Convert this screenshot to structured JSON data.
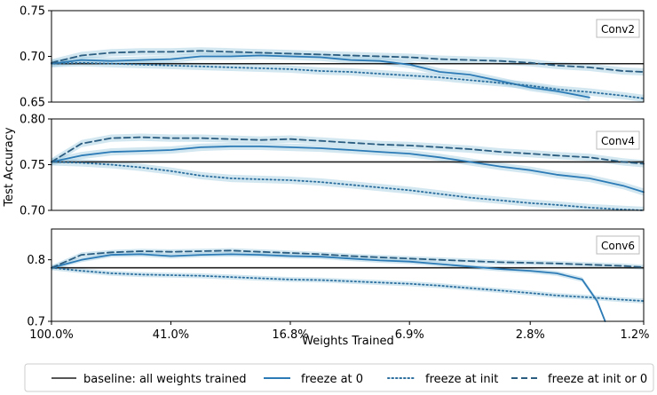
{
  "figure": {
    "ylabel": "Test Accuracy",
    "xlabel": "Weights Trained",
    "x_tick_labels": [
      "100.0%",
      "41.0%",
      "16.8%",
      "6.9%",
      "2.8%",
      "1.2%"
    ]
  },
  "legend": {
    "placement": "bottom",
    "items": [
      {
        "label": "baseline: all weights trained",
        "color": "#1f1f1f",
        "style": "solid"
      },
      {
        "label": "freeze at 0",
        "color": "#2c7bb6",
        "style": "solid"
      },
      {
        "label": "freeze at init",
        "color": "#2c6f9e",
        "style": "dotted"
      },
      {
        "label": "freeze at init or 0",
        "color": "#2b5d80",
        "style": "dashed"
      }
    ]
  },
  "colors": {
    "baseline": "#1f1f1f",
    "freeze_zero": "#2c7bb6",
    "freeze_init": "#2c6f9e",
    "freeze_init_or_zero": "#2b5d80",
    "band": "#9ecae1"
  },
  "chart_data": [
    {
      "type": "line",
      "title": "Conv2",
      "ylim": [
        0.65,
        0.75
      ],
      "y_ticks": [
        0.65,
        0.7,
        0.75
      ],
      "y_tick_labels": [
        "0.65",
        "0.70",
        "0.75"
      ],
      "xlim": [
        100.0,
        1.2
      ],
      "x_scale": "log",
      "grid": false,
      "baseline": 0.692,
      "series": [
        {
          "name": "freeze at 0",
          "style": "solid",
          "x": [
            100.0,
            80.0,
            64.0,
            51.2,
            41.0,
            32.8,
            26.2,
            21.0,
            16.8,
            13.4,
            10.7,
            8.6,
            6.9,
            5.5,
            4.4,
            3.5,
            2.8,
            2.3,
            1.8
          ],
          "y": [
            0.692,
            0.696,
            0.695,
            0.696,
            0.697,
            0.7,
            0.7,
            0.701,
            0.7,
            0.699,
            0.696,
            0.695,
            0.691,
            0.683,
            0.68,
            0.673,
            0.666,
            0.662,
            0.655
          ],
          "band": [
            0.004,
            0.004,
            0.004,
            0.004,
            0.004,
            0.004,
            0.004,
            0.004,
            0.004,
            0.004,
            0.004,
            0.004,
            0.004,
            0.004,
            0.004,
            0.004,
            0.004,
            0.004,
            0.004
          ]
        },
        {
          "name": "freeze at init",
          "style": "dotted",
          "x": [
            100.0,
            80.0,
            64.0,
            51.2,
            41.0,
            32.8,
            26.2,
            21.0,
            16.8,
            13.4,
            10.7,
            8.6,
            6.9,
            5.5,
            4.4,
            3.5,
            2.8,
            2.3,
            1.8,
            1.4,
            1.2
          ],
          "y": [
            0.692,
            0.693,
            0.692,
            0.691,
            0.69,
            0.689,
            0.688,
            0.687,
            0.686,
            0.684,
            0.683,
            0.681,
            0.679,
            0.677,
            0.674,
            0.671,
            0.668,
            0.664,
            0.661,
            0.657,
            0.654
          ],
          "band": [
            0.004,
            0.004,
            0.004,
            0.004,
            0.004,
            0.004,
            0.004,
            0.004,
            0.004,
            0.004,
            0.004,
            0.004,
            0.004,
            0.004,
            0.004,
            0.004,
            0.004,
            0.004,
            0.004,
            0.004,
            0.004
          ]
        },
        {
          "name": "freeze at init or 0",
          "style": "dashed",
          "x": [
            100.0,
            80.0,
            64.0,
            51.2,
            41.0,
            32.8,
            26.2,
            21.0,
            16.8,
            13.4,
            10.7,
            8.6,
            6.9,
            5.5,
            4.4,
            3.5,
            2.8,
            2.3,
            1.8,
            1.4,
            1.2
          ],
          "y": [
            0.693,
            0.701,
            0.704,
            0.705,
            0.705,
            0.706,
            0.705,
            0.704,
            0.703,
            0.702,
            0.701,
            0.7,
            0.699,
            0.697,
            0.696,
            0.695,
            0.693,
            0.69,
            0.688,
            0.684,
            0.683
          ],
          "band": [
            0.004,
            0.004,
            0.004,
            0.004,
            0.004,
            0.004,
            0.004,
            0.004,
            0.004,
            0.004,
            0.004,
            0.004,
            0.004,
            0.004,
            0.004,
            0.004,
            0.004,
            0.004,
            0.004,
            0.004,
            0.004
          ]
        }
      ]
    },
    {
      "type": "line",
      "title": "Conv4",
      "ylim": [
        0.7,
        0.8
      ],
      "y_ticks": [
        0.7,
        0.75,
        0.8
      ],
      "y_tick_labels": [
        "0.70",
        "0.75",
        "0.80"
      ],
      "xlim": [
        100.0,
        1.2
      ],
      "x_scale": "log",
      "grid": false,
      "baseline": 0.753,
      "series": [
        {
          "name": "freeze at 0",
          "style": "solid",
          "x": [
            100.0,
            80.0,
            64.0,
            51.2,
            41.0,
            32.8,
            26.2,
            21.0,
            16.8,
            13.4,
            10.7,
            8.6,
            6.9,
            5.5,
            4.4,
            3.5,
            2.8,
            2.3,
            1.8,
            1.4,
            1.2
          ],
          "y": [
            0.753,
            0.76,
            0.764,
            0.765,
            0.766,
            0.769,
            0.77,
            0.77,
            0.769,
            0.768,
            0.766,
            0.764,
            0.762,
            0.758,
            0.753,
            0.748,
            0.744,
            0.739,
            0.735,
            0.727,
            0.72
          ],
          "band": [
            0.004,
            0.004,
            0.004,
            0.004,
            0.004,
            0.004,
            0.004,
            0.004,
            0.004,
            0.004,
            0.004,
            0.004,
            0.004,
            0.004,
            0.004,
            0.004,
            0.004,
            0.004,
            0.004,
            0.004,
            0.004
          ]
        },
        {
          "name": "freeze at init",
          "style": "dotted",
          "x": [
            100.0,
            80.0,
            64.0,
            51.2,
            41.0,
            32.8,
            26.2,
            21.0,
            16.8,
            13.4,
            10.7,
            8.6,
            6.9,
            5.5,
            4.4,
            3.5,
            2.8,
            2.3,
            1.8,
            1.4,
            1.2
          ],
          "y": [
            0.753,
            0.752,
            0.75,
            0.747,
            0.743,
            0.738,
            0.735,
            0.734,
            0.733,
            0.731,
            0.728,
            0.725,
            0.722,
            0.718,
            0.714,
            0.711,
            0.708,
            0.706,
            0.703,
            0.701,
            0.7
          ],
          "band": [
            0.004,
            0.004,
            0.004,
            0.004,
            0.004,
            0.004,
            0.004,
            0.004,
            0.004,
            0.004,
            0.004,
            0.004,
            0.004,
            0.004,
            0.004,
            0.004,
            0.004,
            0.004,
            0.004,
            0.004,
            0.004
          ]
        },
        {
          "name": "freeze at init or 0",
          "style": "dashed",
          "x": [
            100.0,
            80.0,
            64.0,
            51.2,
            41.0,
            32.8,
            26.2,
            21.0,
            16.8,
            13.4,
            10.7,
            8.6,
            6.9,
            5.5,
            4.4,
            3.5,
            2.8,
            2.3,
            1.8,
            1.4,
            1.2
          ],
          "y": [
            0.753,
            0.773,
            0.779,
            0.78,
            0.779,
            0.779,
            0.778,
            0.777,
            0.778,
            0.776,
            0.774,
            0.772,
            0.771,
            0.769,
            0.767,
            0.764,
            0.762,
            0.76,
            0.758,
            0.753,
            0.751
          ],
          "band": [
            0.004,
            0.004,
            0.004,
            0.004,
            0.004,
            0.004,
            0.004,
            0.004,
            0.004,
            0.004,
            0.004,
            0.004,
            0.004,
            0.004,
            0.004,
            0.004,
            0.004,
            0.004,
            0.004,
            0.004,
            0.004
          ]
        }
      ]
    },
    {
      "type": "line",
      "title": "Conv6",
      "ylim": [
        0.7,
        0.85
      ],
      "y_ticks": [
        0.7,
        0.8
      ],
      "y_tick_labels": [
        "0.7",
        "0.8"
      ],
      "xlim": [
        100.0,
        1.2
      ],
      "x_scale": "log",
      "grid": false,
      "baseline": 0.787,
      "series": [
        {
          "name": "freeze at 0",
          "style": "solid",
          "x": [
            100.0,
            80.0,
            64.0,
            51.2,
            41.0,
            32.8,
            26.2,
            21.0,
            16.8,
            13.4,
            10.7,
            8.6,
            6.9,
            5.5,
            4.4,
            3.5,
            2.8,
            2.3,
            1.9,
            1.7,
            1.6
          ],
          "y": [
            0.787,
            0.8,
            0.808,
            0.809,
            0.806,
            0.808,
            0.809,
            0.808,
            0.806,
            0.805,
            0.802,
            0.799,
            0.797,
            0.793,
            0.789,
            0.785,
            0.782,
            0.778,
            0.768,
            0.733,
            0.7
          ],
          "band": [
            0.004,
            0.004,
            0.004,
            0.004,
            0.004,
            0.004,
            0.004,
            0.004,
            0.004,
            0.004,
            0.004,
            0.004,
            0.004,
            0.004,
            0.004,
            0.004,
            0.004,
            0.004,
            0.004,
            0.004,
            0.004
          ]
        },
        {
          "name": "freeze at init",
          "style": "dotted",
          "x": [
            100.0,
            80.0,
            64.0,
            51.2,
            41.0,
            32.8,
            26.2,
            21.0,
            16.8,
            13.4,
            10.7,
            8.6,
            6.9,
            5.5,
            4.4,
            3.5,
            2.8,
            2.3,
            1.8,
            1.4,
            1.2
          ],
          "y": [
            0.787,
            0.782,
            0.778,
            0.776,
            0.775,
            0.774,
            0.772,
            0.77,
            0.768,
            0.767,
            0.765,
            0.763,
            0.761,
            0.758,
            0.754,
            0.75,
            0.746,
            0.742,
            0.739,
            0.735,
            0.733
          ],
          "band": [
            0.004,
            0.004,
            0.004,
            0.004,
            0.004,
            0.004,
            0.004,
            0.004,
            0.004,
            0.004,
            0.004,
            0.004,
            0.004,
            0.004,
            0.004,
            0.004,
            0.004,
            0.004,
            0.004,
            0.004,
            0.004
          ]
        },
        {
          "name": "freeze at init or 0",
          "style": "dashed",
          "x": [
            100.0,
            80.0,
            64.0,
            51.2,
            41.0,
            32.8,
            26.2,
            21.0,
            16.8,
            13.4,
            10.7,
            8.6,
            6.9,
            5.5,
            4.4,
            3.5,
            2.8,
            2.3,
            1.8,
            1.4,
            1.2
          ],
          "y": [
            0.787,
            0.808,
            0.812,
            0.814,
            0.813,
            0.814,
            0.815,
            0.813,
            0.811,
            0.809,
            0.806,
            0.804,
            0.802,
            0.8,
            0.798,
            0.796,
            0.795,
            0.794,
            0.792,
            0.79,
            0.788
          ],
          "band": [
            0.004,
            0.004,
            0.004,
            0.004,
            0.004,
            0.004,
            0.004,
            0.004,
            0.004,
            0.004,
            0.004,
            0.004,
            0.004,
            0.004,
            0.004,
            0.004,
            0.004,
            0.004,
            0.004,
            0.004,
            0.004
          ]
        }
      ]
    }
  ]
}
